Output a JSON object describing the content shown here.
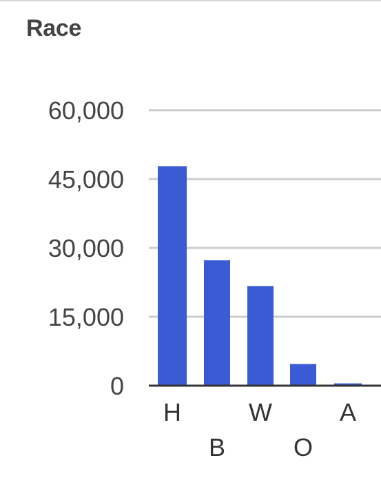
{
  "chart_data": {
    "type": "bar",
    "title": "Race",
    "categories": [
      "H",
      "B",
      "W",
      "O",
      "A"
    ],
    "values": [
      47800,
      27300,
      21700,
      4700,
      500
    ],
    "ylim": [
      0,
      60000
    ],
    "yticks": [
      0,
      15000,
      30000,
      45000,
      60000
    ],
    "ytick_labels": [
      "0",
      "15,000",
      "30,000",
      "45,000",
      "60,000"
    ],
    "grid": true,
    "legend": "none"
  },
  "colors": {
    "bar": "#3a5bd3",
    "grid": "#cccccc",
    "baseline": "#333333",
    "label": "#444444"
  }
}
